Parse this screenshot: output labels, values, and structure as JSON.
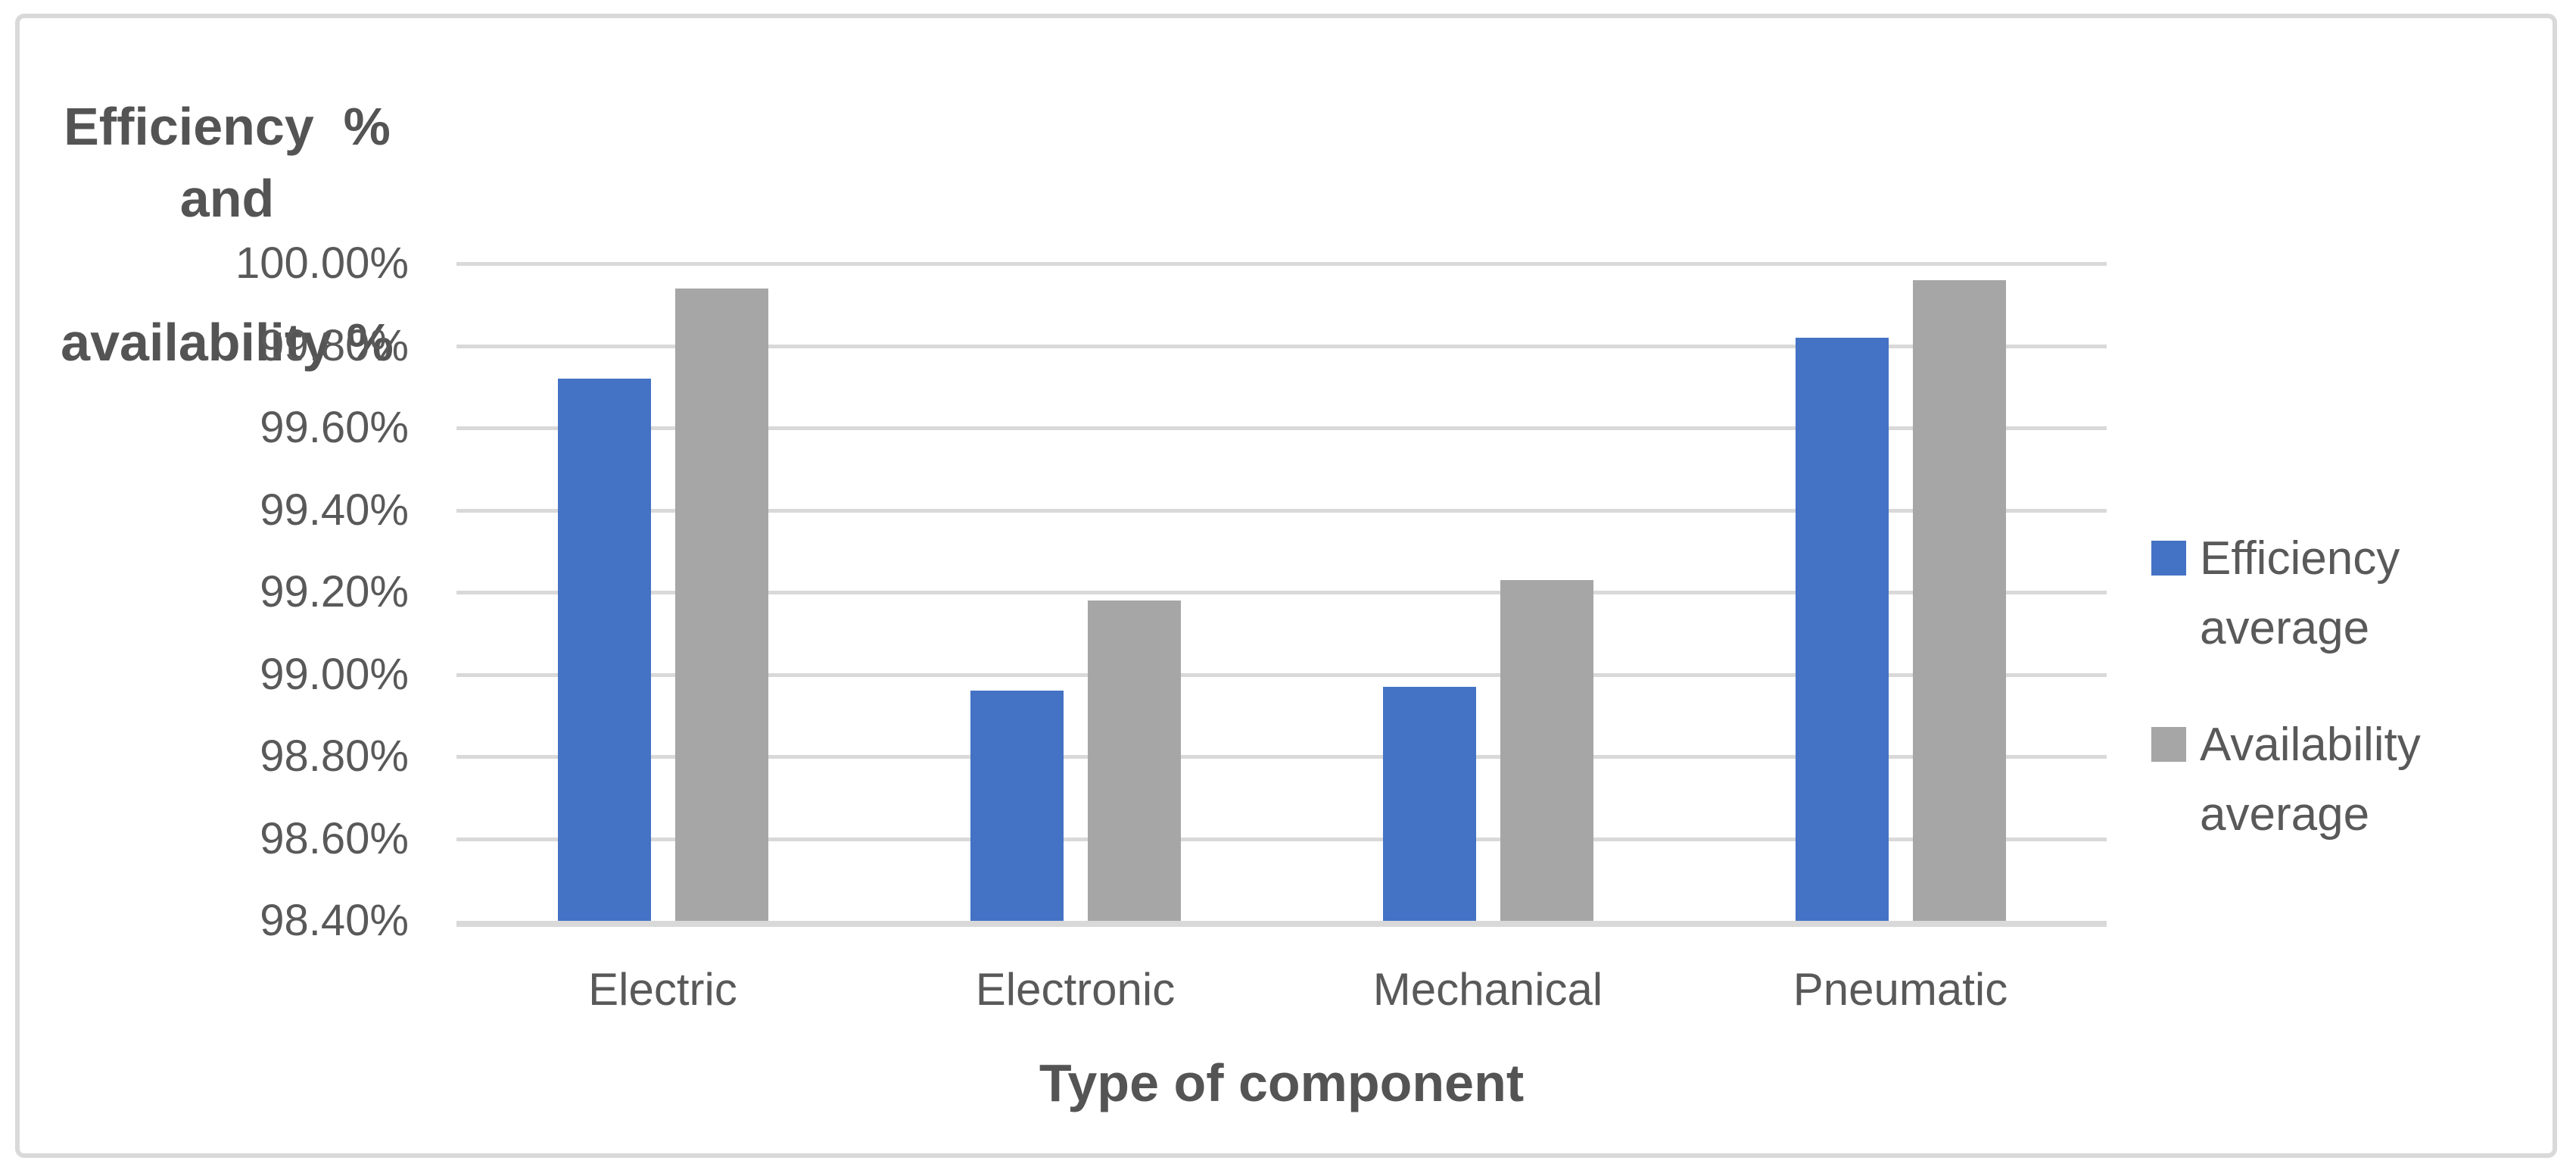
{
  "chart_data": {
    "type": "bar",
    "title_line1": "Efficiency  % and",
    "title_line2": "availability %",
    "x_title": "Type of component",
    "categories": [
      "Electric",
      "Electronic",
      "Mechanical",
      "Pneumatic"
    ],
    "series": [
      {
        "name": "Efficiency average",
        "color": "#4472C4",
        "values": [
          99.72,
          98.96,
          98.97,
          99.82
        ]
      },
      {
        "name": "Availability average",
        "color": "#A6A6A6",
        "values": [
          99.94,
          99.18,
          99.23,
          99.96
        ]
      }
    ],
    "y_axis": {
      "min": 98.4,
      "max": 100.0,
      "step": 0.2,
      "tick_labels": [
        "100.00%",
        "99.80%",
        "99.60%",
        "99.40%",
        "99.20%",
        "99.00%",
        "98.80%",
        "98.60%",
        "98.40%"
      ]
    },
    "legend_position": "right",
    "grid": true,
    "colors": {
      "gridline": "#D9D9D9",
      "frame_border": "#D9D9D9",
      "text": "#595959",
      "title_text": "#545454"
    }
  }
}
